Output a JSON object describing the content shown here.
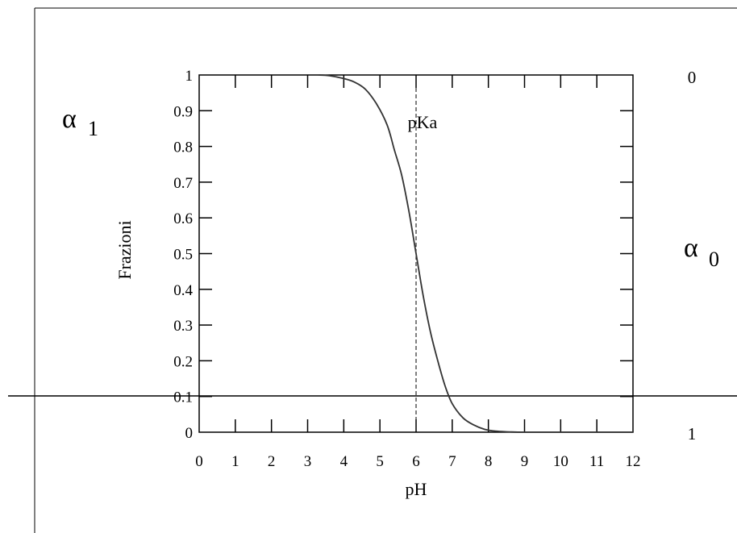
{
  "chart_data": {
    "type": "line",
    "title": "",
    "xlabel": "pH",
    "ylabel": "Frazioni",
    "xlim": [
      0,
      12
    ],
    "ylim": [
      0,
      1
    ],
    "x_ticks": [
      "0",
      "1",
      "2",
      "3",
      "4",
      "5",
      "6",
      "7",
      "8",
      "9",
      "10",
      "11",
      "12"
    ],
    "y_ticks": [
      "0",
      "0.1",
      "0.2",
      "0.3",
      "0.4",
      "0.5",
      "0.6",
      "0.7",
      "0.8",
      "0.9",
      "1"
    ],
    "right_ticks": [
      "0",
      "1"
    ],
    "series_labels": {
      "alpha1": {
        "symbol": "α",
        "sub": "1"
      },
      "alpha0": {
        "symbol": "α",
        "sub": "0"
      }
    },
    "pKa": 6,
    "pKa_label": "pKa",
    "grid": false,
    "series": [
      {
        "x": [
          3.3,
          3.6,
          4.0,
          4.3,
          4.6,
          4.9,
          5.2,
          5.4,
          5.6,
          5.8,
          6.0,
          6.2,
          6.4,
          6.6,
          6.8,
          7.0,
          7.3,
          7.6,
          7.9,
          8.2,
          8.6,
          9,
          10,
          11,
          12
        ],
        "y": [
          1.0,
          0.998,
          0.99,
          0.98,
          0.96,
          0.92,
          0.86,
          0.79,
          0.72,
          0.62,
          0.5,
          0.38,
          0.28,
          0.2,
          0.13,
          0.08,
          0.04,
          0.02,
          0.008,
          0.003,
          0.001,
          0,
          0,
          0,
          0
        ]
      }
    ]
  }
}
